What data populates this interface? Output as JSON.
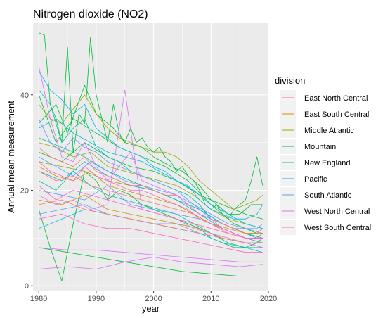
{
  "chart_data": {
    "type": "line",
    "title": "Nitrogen dioxide (NO2)",
    "xlabel": "year",
    "ylabel": "Annual mean measurement",
    "xlim": [
      1979,
      2020
    ],
    "ylim": [
      -1,
      55
    ],
    "x_ticks": [
      1980,
      1990,
      2000,
      2010,
      2020
    ],
    "y_ticks": [
      0,
      20,
      40
    ],
    "grid": true,
    "panel_background": "#EBEBEB",
    "legend": {
      "title": "division",
      "placement": "right",
      "entries": [
        {
          "name": "East North Central",
          "color": "#F8766D"
        },
        {
          "name": "East South Central",
          "color": "#D39200"
        },
        {
          "name": "Middle Atlantic",
          "color": "#93AA00"
        },
        {
          "name": "Mountain",
          "color": "#00BA38"
        },
        {
          "name": "New England",
          "color": "#00C19F"
        },
        {
          "name": "Pacific",
          "color": "#00B9E3"
        },
        {
          "name": "South Atlantic",
          "color": "#619CFF"
        },
        {
          "name": "West North Central",
          "color": "#DB72FB"
        },
        {
          "name": "West South Central",
          "color": "#FF61C3"
        }
      ]
    },
    "series": [
      {
        "division": "Mountain",
        "years": [
          1980,
          1981,
          1982,
          1983,
          1984,
          1985,
          1986,
          1987,
          1988,
          1989,
          1990,
          1991,
          1992,
          1993,
          1994,
          1995,
          1996,
          1997,
          1998,
          1999,
          2000,
          2001,
          2002,
          2003,
          2004,
          2005,
          2006,
          2007,
          2008,
          2009,
          2010,
          2011,
          2012,
          2013,
          2014,
          2015,
          2016,
          2017,
          2018,
          2019
        ],
        "values": [
          53,
          52.5,
          38,
          35,
          30,
          50,
          28,
          36,
          34,
          52,
          40,
          35,
          30,
          38,
          32,
          30,
          33,
          30,
          31,
          29,
          28,
          29,
          27,
          26,
          24,
          25,
          23,
          22,
          20,
          17,
          16,
          17,
          15,
          14,
          16,
          17,
          18,
          22,
          27,
          21
        ]
      },
      {
        "division": "Mountain",
        "years": [
          1980,
          1983,
          1985,
          1988,
          1990,
          1993,
          1995,
          1998,
          2000,
          2003,
          2005,
          2008,
          2010,
          2013,
          2015,
          2017,
          2019
        ],
        "values": [
          34,
          38,
          32,
          42,
          36,
          33,
          30,
          29,
          27,
          25,
          24,
          21,
          18,
          15,
          15,
          17,
          17
        ]
      },
      {
        "division": "Mountain",
        "years": [
          1980,
          1982,
          1984,
          1986,
          1988,
          1990,
          1992,
          1994,
          1996,
          1998,
          2000,
          2002,
          2004,
          2006,
          2008,
          2010,
          2012,
          2014,
          2016,
          2018,
          2019
        ],
        "values": [
          16,
          8,
          1,
          13,
          24,
          22,
          18,
          20,
          19,
          17,
          16,
          15,
          14,
          13,
          12,
          10,
          9,
          8,
          8,
          9,
          10
        ]
      },
      {
        "division": "Mountain",
        "years": [
          1980,
          1985,
          1990,
          1995,
          2000,
          2005,
          2010,
          2015,
          2019
        ],
        "values": [
          8,
          7,
          6,
          5,
          4,
          3,
          2.5,
          2,
          2
        ]
      },
      {
        "division": "Mountain",
        "years": [
          1980,
          1984,
          1988,
          1992,
          1996,
          2000,
          2004,
          2008,
          2012,
          2016,
          2019
        ],
        "values": [
          28,
          26,
          30,
          27,
          25,
          24,
          22,
          19,
          17,
          15,
          14
        ]
      },
      {
        "division": "Mountain",
        "years": [
          1980,
          1983,
          1986,
          1990,
          1994,
          1998,
          2002,
          2006,
          2010,
          2014,
          2018,
          2019
        ],
        "values": [
          40,
          30,
          35,
          32,
          29,
          27,
          25,
          22,
          17,
          13,
          11,
          12
        ]
      },
      {
        "division": "New England",
        "years": [
          1980,
          1982,
          1984,
          1986,
          1988,
          1990,
          1992,
          1994,
          1996,
          1998,
          2000,
          2002,
          2004,
          2006,
          2008,
          2010,
          2012,
          2014,
          2016,
          2018,
          2019
        ],
        "values": [
          41,
          38,
          30,
          33,
          35,
          29,
          27,
          26,
          24,
          23,
          22,
          21,
          20,
          19,
          17,
          14,
          13,
          12,
          11,
          10,
          11
        ]
      },
      {
        "division": "New England",
        "years": [
          1980,
          1983,
          1986,
          1989,
          1992,
          1995,
          1998,
          2001,
          2004,
          2007,
          2010,
          2013,
          2016,
          2019
        ],
        "values": [
          22,
          20,
          24,
          21,
          19,
          18,
          17,
          16,
          15,
          13,
          11,
          9,
          8,
          8
        ]
      },
      {
        "division": "New England",
        "years": [
          1980,
          1984,
          1988,
          1992,
          1996,
          2000,
          2004,
          2008,
          2012,
          2016,
          2019
        ],
        "values": [
          31,
          29,
          27,
          24,
          22,
          20,
          18,
          15,
          12,
          10,
          9
        ]
      },
      {
        "division": "Middle Atlantic",
        "years": [
          1980,
          1982,
          1984,
          1986,
          1988,
          1990,
          1992,
          1994,
          1996,
          1998,
          2000,
          2002,
          2004,
          2006,
          2008,
          2010,
          2012,
          2014,
          2016,
          2018,
          2019
        ],
        "values": [
          38,
          35,
          34,
          37,
          40,
          36,
          33,
          31,
          30,
          29,
          28,
          28,
          27,
          25,
          22,
          20,
          18,
          16,
          17,
          18,
          19
        ]
      },
      {
        "division": "Middle Atlantic",
        "years": [
          1980,
          1983,
          1986,
          1989,
          1992,
          1995,
          1998,
          2001,
          2004,
          2007,
          2010,
          2013,
          2016,
          2019
        ],
        "values": [
          30,
          29,
          27,
          28,
          25,
          24,
          23,
          22,
          21,
          19,
          16,
          14,
          13,
          12
        ]
      },
      {
        "division": "Middle Atlantic",
        "years": [
          1980,
          1984,
          1988,
          1992,
          1996,
          2000,
          2004,
          2008,
          2012,
          2016,
          2019
        ],
        "values": [
          26,
          25,
          24,
          22,
          21,
          20,
          18,
          16,
          13,
          11,
          10
        ]
      },
      {
        "division": "Pacific",
        "years": [
          1980,
          1982,
          1984,
          1986,
          1988,
          1990,
          1992,
          1994,
          1996,
          1998,
          2000,
          2002,
          2004,
          2006,
          2008,
          2010,
          2012,
          2014,
          2016,
          2018,
          2019
        ],
        "values": [
          45,
          41,
          39,
          36,
          38,
          33,
          31,
          29,
          28,
          27,
          25,
          24,
          22,
          21,
          18,
          16,
          15,
          14,
          14,
          15,
          17
        ]
      },
      {
        "division": "Pacific",
        "years": [
          1980,
          1983,
          1986,
          1989,
          1992,
          1995,
          1998,
          2001,
          2004,
          2007,
          2010,
          2013,
          2016,
          2019
        ],
        "values": [
          33,
          35,
          32,
          30,
          28,
          27,
          26,
          24,
          22,
          20,
          17,
          15,
          13,
          12
        ]
      },
      {
        "division": "Pacific",
        "years": [
          1980,
          1984,
          1988,
          1992,
          1996,
          2000,
          2004,
          2008,
          2012,
          2016,
          2019
        ],
        "values": [
          24,
          22,
          26,
          23,
          21,
          20,
          18,
          16,
          13,
          11,
          10
        ]
      },
      {
        "division": "Pacific",
        "years": [
          1980,
          1984,
          1988,
          1992,
          1996,
          2000,
          2004,
          2008,
          2012,
          2016,
          2019
        ],
        "values": [
          12,
          14,
          16,
          15,
          14,
          13,
          12,
          11,
          9,
          8,
          7
        ]
      },
      {
        "division": "South Atlantic",
        "years": [
          1980,
          1982,
          1984,
          1986,
          1988,
          1990,
          1992,
          1994,
          1996,
          1998,
          2000,
          2002,
          2004,
          2006,
          2008,
          2010,
          2012,
          2014,
          2016,
          2018,
          2019
        ],
        "values": [
          35,
          30,
          28,
          31,
          29,
          28,
          26,
          25,
          24,
          23,
          22,
          21,
          20,
          18,
          16,
          14,
          13,
          12,
          12,
          12,
          13
        ]
      },
      {
        "division": "South Atlantic",
        "years": [
          1980,
          1983,
          1986,
          1989,
          1992,
          1995,
          1998,
          2001,
          2004,
          2007,
          2010,
          2013,
          2016,
          2019
        ],
        "values": [
          27,
          25,
          23,
          26,
          24,
          22,
          21,
          20,
          19,
          17,
          15,
          13,
          12,
          11
        ]
      },
      {
        "division": "South Atlantic",
        "years": [
          1980,
          1984,
          1988,
          1992,
          1996,
          2000,
          2004,
          2008,
          2012,
          2016,
          2019
        ],
        "values": [
          20,
          19,
          18,
          21,
          17,
          16,
          15,
          14,
          12,
          10,
          9
        ]
      },
      {
        "division": "South Atlantic",
        "years": [
          1980,
          1984,
          1988,
          1992,
          1996,
          2000,
          2004,
          2008,
          2012,
          2016,
          2019
        ],
        "values": [
          15,
          16,
          17,
          15,
          14,
          13,
          13,
          11,
          10,
          9,
          8
        ]
      },
      {
        "division": "East North Central",
        "years": [
          1980,
          1982,
          1984,
          1986,
          1988,
          1990,
          1992,
          1994,
          1996,
          1998,
          2000,
          2002,
          2004,
          2006,
          2008,
          2010,
          2012,
          2014,
          2016,
          2018,
          2019
        ],
        "values": [
          29,
          27,
          26,
          25,
          27,
          24,
          23,
          22,
          21,
          21,
          20,
          19,
          19,
          17,
          15,
          14,
          13,
          12,
          11,
          11,
          12
        ]
      },
      {
        "division": "East North Central",
        "years": [
          1980,
          1983,
          1986,
          1989,
          1992,
          1995,
          1998,
          2001,
          2004,
          2007,
          2010,
          2013,
          2016,
          2019
        ],
        "values": [
          24,
          22,
          23,
          21,
          20,
          19,
          18,
          17,
          16,
          15,
          13,
          11,
          10,
          10
        ]
      },
      {
        "division": "East North Central",
        "years": [
          1980,
          1984,
          1988,
          1992,
          1996,
          2000,
          2004,
          2008,
          2012,
          2016,
          2019
        ],
        "values": [
          17,
          18,
          16,
          15,
          14,
          13,
          12,
          11,
          10,
          9,
          9
        ]
      },
      {
        "division": "East South Central",
        "years": [
          1980,
          1983,
          1986,
          1989,
          1992,
          1995,
          1998,
          2001,
          2004,
          2007,
          2010,
          2013,
          2016,
          2019
        ],
        "values": [
          25,
          23,
          22,
          24,
          21,
          20,
          19,
          18,
          17,
          15,
          13,
          12,
          11,
          11
        ]
      },
      {
        "division": "East South Central",
        "years": [
          1980,
          1984,
          1988,
          1992,
          1996,
          2000,
          2004,
          2008,
          2012,
          2016,
          2019
        ],
        "values": [
          18,
          17,
          19,
          16,
          15,
          14,
          13,
          12,
          10,
          9,
          9
        ]
      },
      {
        "division": "West North Central",
        "years": [
          1980,
          1982,
          1984,
          1986,
          1988,
          1990,
          1992,
          1994,
          1996,
          1998,
          2000,
          2002,
          2004,
          2006,
          2008,
          2010,
          2012,
          2014,
          2016,
          2018,
          2019
        ],
        "values": [
          46,
          35,
          27,
          26,
          30,
          25,
          22,
          25,
          28,
          22,
          21,
          20,
          19,
          17,
          15,
          14,
          12,
          11,
          10,
          10,
          10
        ]
      },
      {
        "division": "West North Central",
        "years": [
          1980,
          1983,
          1986,
          1989,
          1992,
          1995,
          1998,
          2001,
          2004,
          2007,
          2010,
          2013,
          2016,
          2019
        ],
        "values": [
          19,
          17,
          18,
          16,
          17,
          41,
          16,
          15,
          14,
          12,
          11,
          10,
          9,
          8
        ]
      },
      {
        "division": "West North Central",
        "years": [
          1980,
          1985,
          1990,
          1995,
          2000,
          2005,
          2010,
          2015,
          2019
        ],
        "values": [
          8,
          7.5,
          7.5,
          7,
          6.5,
          6,
          5.5,
          5,
          5
        ]
      },
      {
        "division": "West North Central",
        "years": [
          1980,
          1985,
          1990,
          1995,
          2000,
          2005,
          2010,
          2015,
          2019
        ],
        "values": [
          3.5,
          4,
          3.5,
          5,
          6,
          5,
          4.5,
          4,
          4.5
        ]
      },
      {
        "division": "West South Central",
        "years": [
          1980,
          1982,
          1984,
          1986,
          1988,
          1990,
          1992,
          1994,
          1996,
          1998,
          2000,
          2002,
          2004,
          2006,
          2008,
          2010,
          2012,
          2014,
          2016,
          2018,
          2019
        ],
        "values": [
          26,
          24,
          23,
          22,
          25,
          23,
          22,
          21,
          20,
          20,
          19,
          18,
          17,
          16,
          14,
          13,
          12,
          11,
          10,
          10,
          11
        ]
      },
      {
        "division": "West South Central",
        "years": [
          1980,
          1983,
          1986,
          1989,
          1992,
          1995,
          1998,
          2001,
          2004,
          2007,
          2010,
          2013,
          2016,
          2019
        ],
        "values": [
          21,
          18,
          20,
          19,
          18,
          17,
          16,
          15,
          14,
          13,
          12,
          11,
          10,
          10
        ]
      },
      {
        "division": "West South Central",
        "years": [
          1980,
          1984,
          1988,
          1992,
          1996,
          2000,
          2004,
          2008,
          2012,
          2016,
          2019
        ],
        "values": [
          14,
          15,
          13,
          12,
          12,
          11,
          10,
          9,
          8,
          7,
          7
        ]
      }
    ]
  }
}
